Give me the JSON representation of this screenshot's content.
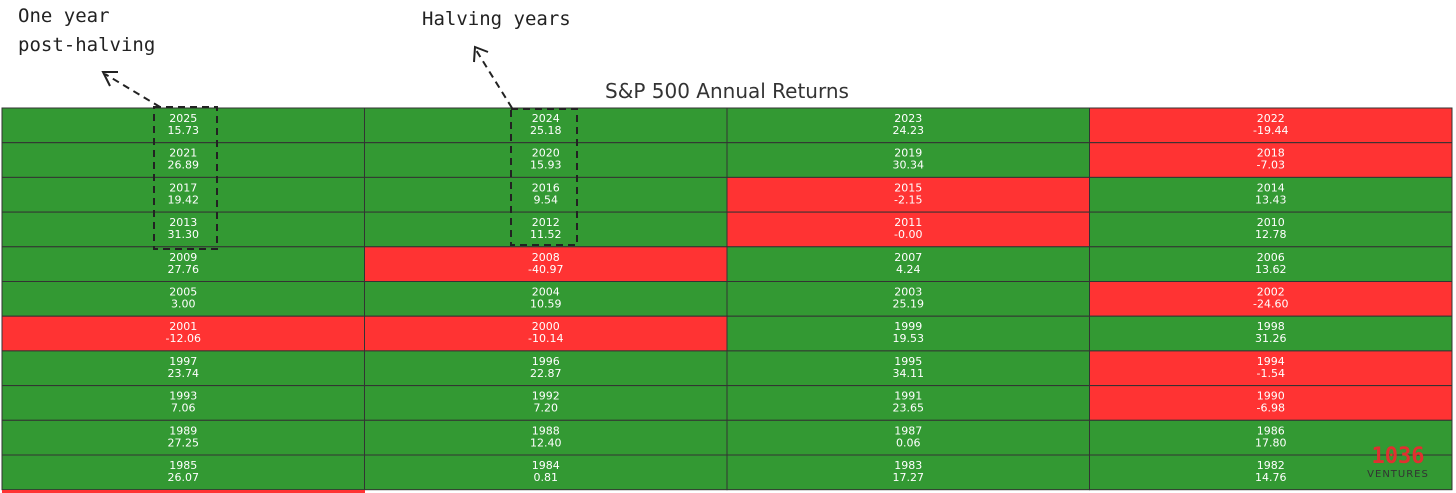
{
  "title": "S&P 500 Annual Returns",
  "annotations": {
    "post_halving": [
      "One year",
      "post-halving"
    ],
    "halving": "Halving years"
  },
  "logo": {
    "mark": "1036",
    "text": "VENTURES"
  },
  "table": {
    "rows": [
      [
        {
          "year": "2025",
          "value": "15.73"
        },
        {
          "year": "2024",
          "value": "25.18"
        },
        {
          "year": "2023",
          "value": "24.23"
        },
        {
          "year": "2022",
          "value": "-19.44"
        }
      ],
      [
        {
          "year": "2021",
          "value": "26.89"
        },
        {
          "year": "2020",
          "value": "15.93"
        },
        {
          "year": "2019",
          "value": "30.34"
        },
        {
          "year": "2018",
          "value": "-7.03"
        }
      ],
      [
        {
          "year": "2017",
          "value": "19.42"
        },
        {
          "year": "2016",
          "value": "9.54"
        },
        {
          "year": "2015",
          "value": "-2.15"
        },
        {
          "year": "2014",
          "value": "13.43"
        }
      ],
      [
        {
          "year": "2013",
          "value": "31.30"
        },
        {
          "year": "2012",
          "value": "11.52"
        },
        {
          "year": "2011",
          "value": "-0.00"
        },
        {
          "year": "2010",
          "value": "12.78"
        }
      ],
      [
        {
          "year": "2009",
          "value": "27.76"
        },
        {
          "year": "2008",
          "value": "-40.97"
        },
        {
          "year": "2007",
          "value": "4.24"
        },
        {
          "year": "2006",
          "value": "13.62"
        }
      ],
      [
        {
          "year": "2005",
          "value": "3.00"
        },
        {
          "year": "2004",
          "value": "10.59"
        },
        {
          "year": "2003",
          "value": "25.19"
        },
        {
          "year": "2002",
          "value": "-24.60"
        }
      ],
      [
        {
          "year": "2001",
          "value": "-12.06"
        },
        {
          "year": "2000",
          "value": "-10.14"
        },
        {
          "year": "1999",
          "value": "19.53"
        },
        {
          "year": "1998",
          "value": "31.26"
        }
      ],
      [
        {
          "year": "1997",
          "value": "23.74"
        },
        {
          "year": "1996",
          "value": "22.87"
        },
        {
          "year": "1995",
          "value": "34.11"
        },
        {
          "year": "1994",
          "value": "-1.54"
        }
      ],
      [
        {
          "year": "1993",
          "value": "7.06"
        },
        {
          "year": "1992",
          "value": "7.20"
        },
        {
          "year": "1991",
          "value": "23.65"
        },
        {
          "year": "1990",
          "value": "-6.98"
        }
      ],
      [
        {
          "year": "1989",
          "value": "27.25"
        },
        {
          "year": "1988",
          "value": "12.40"
        },
        {
          "year": "1987",
          "value": "0.06"
        },
        {
          "year": "1986",
          "value": "17.80"
        }
      ],
      [
        {
          "year": "1985",
          "value": "26.07"
        },
        {
          "year": "1984",
          "value": "0.81"
        },
        {
          "year": "1983",
          "value": "17.27"
        },
        {
          "year": "1982",
          "value": "14.76"
        }
      ]
    ]
  }
}
